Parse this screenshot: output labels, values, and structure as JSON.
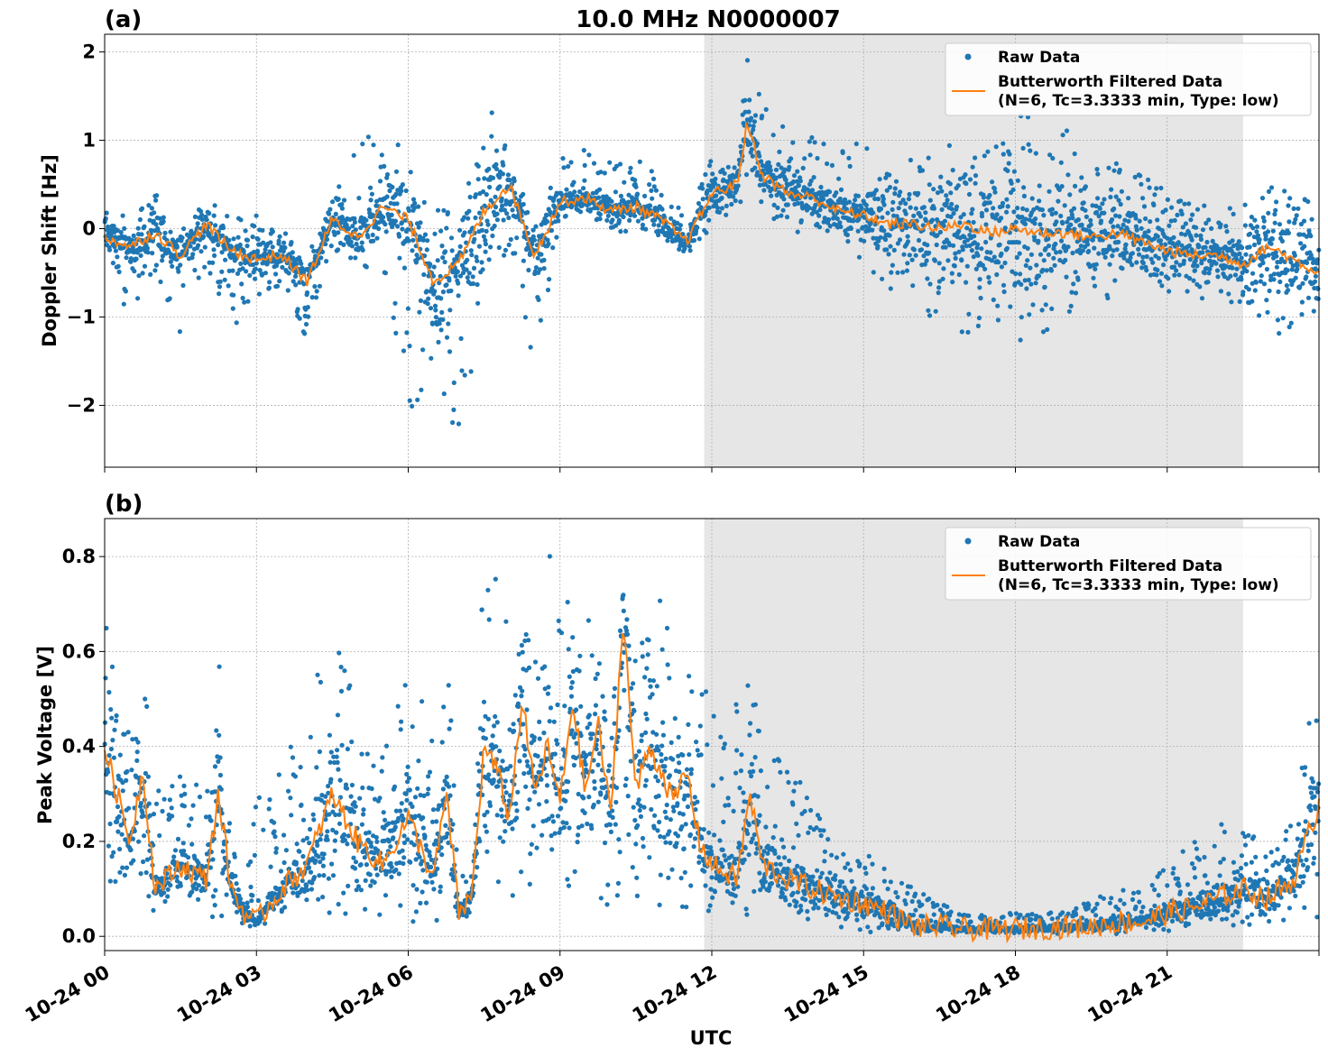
{
  "title": "10.0 MHz N0000007",
  "xlabel": "UTC",
  "colors": {
    "raw": "#1f77b4",
    "filtered": "#ff7f0e",
    "night_shade": "#e6e6e6",
    "grid": "#b0b0b0"
  },
  "legend": {
    "raw_label": "Raw Data",
    "filtered_label_line1": "Butterworth Filtered Data",
    "filtered_label_line2": "(N=6, Tc=3.3333 min, Type: low)"
  },
  "x_ticks": [
    "10-24 00",
    "10-24 03",
    "10-24 06",
    "10-24 09",
    "10-24 12",
    "10-24 15",
    "10-24 18",
    "10-24 21"
  ],
  "chart_data": [
    {
      "panel_label": "(a)",
      "type": "scatter",
      "ylabel": "Doppler Shift [Hz]",
      "xlim_hours": [
        0,
        24
      ],
      "ylim": [
        -2.7,
        2.2
      ],
      "y_ticks": [
        -2,
        -1,
        0,
        1,
        2
      ],
      "y_tick_labels": [
        "−2",
        "−1",
        "0",
        "1",
        "2"
      ],
      "grid": true,
      "legend_position": "top-right",
      "shaded_interval_hours": [
        11.85,
        22.5
      ],
      "series": [
        {
          "name": "Butterworth Filtered Data",
          "x_hours": [
            0,
            0.5,
            1,
            1.5,
            2,
            2.5,
            3,
            3.5,
            4,
            4.5,
            5,
            5.5,
            6,
            6.5,
            7,
            7.5,
            8,
            8.5,
            9,
            9.5,
            10,
            10.5,
            11,
            11.5,
            12,
            12.5,
            12.7,
            13,
            13.5,
            14,
            14.5,
            15,
            15.5,
            16,
            16.5,
            17,
            17.5,
            18,
            18.5,
            19,
            19.5,
            20,
            20.5,
            21,
            21.5,
            22,
            22.5,
            23,
            23.5,
            24
          ],
          "values": [
            -0.1,
            -0.2,
            -0.05,
            -0.3,
            0.05,
            -0.25,
            -0.35,
            -0.3,
            -0.6,
            0.1,
            -0.1,
            0.25,
            0.1,
            -0.6,
            -0.4,
            0.2,
            0.5,
            -0.3,
            0.3,
            0.35,
            0.2,
            0.25,
            0.1,
            -0.15,
            0.4,
            0.5,
            1.2,
            0.6,
            0.4,
            0.35,
            0.2,
            0.15,
            0.05,
            0.05,
            0.0,
            0.05,
            -0.05,
            0.0,
            -0.05,
            -0.05,
            -0.1,
            -0.05,
            -0.15,
            -0.25,
            -0.3,
            -0.3,
            -0.4,
            -0.2,
            -0.35,
            -0.5
          ]
        },
        {
          "name": "Raw Data",
          "x_hours": [
            0,
            0.5,
            1,
            1.5,
            2,
            2.5,
            3,
            3.5,
            4,
            4.5,
            5,
            5.5,
            6,
            6.5,
            7,
            7.5,
            8,
            8.5,
            9,
            9.5,
            10,
            10.5,
            11,
            11.5,
            12,
            12.5,
            12.7,
            13,
            13.5,
            14,
            14.5,
            15,
            15.5,
            16,
            16.5,
            17,
            17.5,
            18,
            18.5,
            19,
            19.5,
            20,
            20.5,
            21,
            21.5,
            22,
            22.5,
            23,
            23.5,
            24
          ],
          "upper": [
            0.3,
            0.1,
            0.45,
            0.0,
            0.4,
            0.1,
            0.2,
            0.0,
            -0.3,
            0.3,
            1.15,
            0.9,
            1.0,
            0.4,
            0.2,
            1.6,
            0.9,
            0.2,
            0.9,
            0.9,
            0.75,
            0.8,
            0.6,
            0.1,
            0.8,
            0.8,
            2.0,
            1.4,
            1.1,
            1.05,
            0.9,
            1.0,
            0.9,
            0.8,
            1.2,
            1.4,
            1.2,
            1.35,
            1.3,
            1.2,
            0.9,
            0.8,
            0.6,
            0.5,
            0.6,
            0.2,
            0.3,
            0.5,
            0.4,
            0.3
          ],
          "lower": [
            -0.5,
            -1.0,
            -0.6,
            -1.2,
            -0.4,
            -1.2,
            -0.8,
            -0.7,
            -1.25,
            -0.2,
            -0.5,
            -0.5,
            -2.4,
            -1.5,
            -2.5,
            -0.9,
            -0.2,
            -1.6,
            0.1,
            0.1,
            -0.1,
            0.0,
            -0.2,
            -0.3,
            0.0,
            0.2,
            0.4,
            0.2,
            0.0,
            -0.1,
            -0.2,
            -0.4,
            -0.7,
            -0.9,
            -1.1,
            -1.2,
            -1.05,
            -1.3,
            -1.2,
            -1.0,
            -0.9,
            -0.8,
            -0.85,
            -0.8,
            -0.95,
            -0.7,
            -0.95,
            -1.2,
            -1.25,
            -0.9
          ]
        }
      ]
    },
    {
      "panel_label": "(b)",
      "type": "scatter",
      "ylabel": "Peak Voltage [V]",
      "xlim_hours": [
        0,
        24
      ],
      "ylim": [
        -0.03,
        0.88
      ],
      "y_ticks": [
        0.0,
        0.2,
        0.4,
        0.6,
        0.8
      ],
      "y_tick_labels": [
        "0.0",
        "0.2",
        "0.4",
        "0.6",
        "0.8"
      ],
      "grid": true,
      "legend_position": "top-right",
      "shaded_interval_hours": [
        11.85,
        22.5
      ],
      "series": [
        {
          "name": "Butterworth Filtered Data",
          "x_hours": [
            0,
            0.25,
            0.5,
            0.75,
            1,
            1.5,
            2,
            2.25,
            2.5,
            2.75,
            3,
            3.5,
            4,
            4.5,
            5,
            5.5,
            6,
            6.5,
            6.75,
            7,
            7.25,
            7.5,
            7.75,
            8,
            8.25,
            8.5,
            8.75,
            9,
            9.25,
            9.5,
            9.75,
            10,
            10.25,
            10.5,
            10.75,
            11,
            11.25,
            11.5,
            11.75,
            12,
            12.5,
            12.75,
            13,
            13.5,
            14,
            14.5,
            15,
            15.5,
            16,
            16.5,
            17,
            17.5,
            18,
            18.5,
            19,
            19.5,
            20,
            20.5,
            21,
            21.5,
            22,
            22.5,
            23,
            23.5,
            24
          ],
          "values": [
            0.4,
            0.3,
            0.2,
            0.35,
            0.1,
            0.15,
            0.12,
            0.3,
            0.1,
            0.05,
            0.03,
            0.1,
            0.15,
            0.3,
            0.2,
            0.15,
            0.25,
            0.12,
            0.3,
            0.05,
            0.08,
            0.4,
            0.35,
            0.25,
            0.5,
            0.3,
            0.4,
            0.28,
            0.5,
            0.3,
            0.45,
            0.25,
            0.68,
            0.3,
            0.4,
            0.35,
            0.28,
            0.35,
            0.2,
            0.15,
            0.12,
            0.3,
            0.15,
            0.12,
            0.1,
            0.08,
            0.07,
            0.05,
            0.02,
            0.02,
            0.015,
            0.015,
            0.015,
            0.018,
            0.02,
            0.02,
            0.03,
            0.03,
            0.05,
            0.06,
            0.08,
            0.1,
            0.08,
            0.12,
            0.28
          ]
        },
        {
          "name": "Raw Data",
          "x_hours": [
            0,
            0.25,
            0.5,
            0.75,
            1,
            1.5,
            2,
            2.25,
            2.5,
            2.75,
            3,
            3.5,
            4,
            4.5,
            5,
            5.5,
            6,
            6.5,
            6.75,
            7,
            7.25,
            7.5,
            7.75,
            8,
            8.25,
            8.5,
            8.75,
            9,
            9.25,
            9.5,
            9.75,
            10,
            10.25,
            10.5,
            10.75,
            11,
            11.25,
            11.5,
            11.75,
            12,
            12.5,
            12.75,
            13,
            13.5,
            14,
            14.5,
            15,
            15.5,
            16,
            16.5,
            17,
            17.5,
            18,
            18.5,
            19,
            19.5,
            20,
            20.5,
            21,
            21.5,
            22,
            22.5,
            23,
            23.5,
            24
          ],
          "upper": [
            0.72,
            0.5,
            0.45,
            0.58,
            0.3,
            0.35,
            0.32,
            0.64,
            0.25,
            0.12,
            0.3,
            0.35,
            0.52,
            0.65,
            0.48,
            0.4,
            0.55,
            0.45,
            0.67,
            0.12,
            0.15,
            0.84,
            0.75,
            0.68,
            0.78,
            0.7,
            0.84,
            0.72,
            0.82,
            0.75,
            0.8,
            0.55,
            0.82,
            0.65,
            0.75,
            0.72,
            0.6,
            0.68,
            0.55,
            0.52,
            0.55,
            0.58,
            0.42,
            0.35,
            0.33,
            0.2,
            0.18,
            0.14,
            0.1,
            0.07,
            0.05,
            0.05,
            0.05,
            0.05,
            0.05,
            0.08,
            0.1,
            0.12,
            0.15,
            0.2,
            0.25,
            0.22,
            0.2,
            0.25,
            0.58
          ],
          "lower": [
            0.1,
            0.08,
            0.1,
            0.05,
            0.05,
            0.05,
            0.05,
            0.03,
            0.02,
            0.01,
            0.02,
            0.03,
            0.04,
            0.04,
            0.03,
            0.03,
            0.03,
            0.03,
            0.04,
            0.03,
            0.03,
            0.1,
            0.1,
            0.06,
            0.12,
            0.08,
            0.08,
            0.08,
            0.1,
            0.06,
            0.08,
            0.06,
            0.1,
            0.06,
            0.07,
            0.06,
            0.06,
            0.06,
            0.05,
            0.04,
            0.03,
            0.03,
            0.02,
            0.02,
            0.01,
            0.01,
            0.01,
            0.005,
            0.005,
            0.005,
            0.005,
            0.005,
            0.005,
            0.005,
            0.005,
            0.005,
            0.005,
            0.01,
            0.01,
            0.01,
            0.02,
            0.02,
            0.02,
            0.03,
            0.04
          ]
        }
      ]
    }
  ]
}
